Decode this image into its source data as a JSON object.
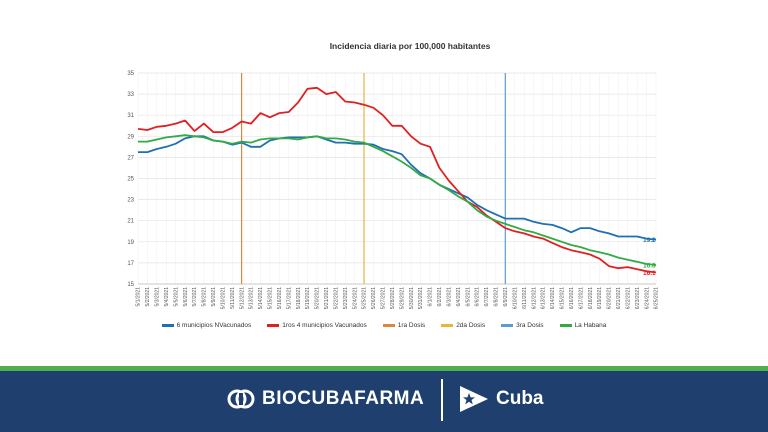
{
  "chart_data": {
    "type": "line",
    "title": "Incidencia diaria por 100,000 habitantes",
    "xlabel": "",
    "ylabel": "",
    "ylim": [
      15,
      35
    ],
    "yticks": [
      15,
      17,
      19,
      21,
      23,
      25,
      27,
      29,
      31,
      33,
      35
    ],
    "categories": [
      "5/1/2021",
      "5/2/2021",
      "5/3/2021",
      "5/4/2021",
      "5/5/2021",
      "5/6/2021",
      "5/7/2021",
      "5/8/2021",
      "5/9/2021",
      "5/10/2021",
      "5/11/2021",
      "5/12/2021",
      "5/13/2021",
      "5/14/2021",
      "5/15/2021",
      "5/16/2021",
      "5/17/2021",
      "5/18/2021",
      "5/19/2021",
      "5/20/2021",
      "5/21/2021",
      "5/22/2021",
      "5/23/2021",
      "5/24/2021",
      "5/25/2021",
      "5/26/2021",
      "5/27/2021",
      "5/28/2021",
      "5/29/2021",
      "5/30/2021",
      "5/31/2021",
      "6/1/2021",
      "6/2/2021",
      "6/3/2021",
      "6/4/2021",
      "6/5/2021",
      "6/6/2021",
      "6/7/2021",
      "6/8/2021",
      "6/9/2021",
      "6/10/2021",
      "6/11/2021",
      "6/12/2021",
      "6/13/2021",
      "6/14/2021",
      "6/15/2021",
      "6/16/2021",
      "6/17/2021",
      "6/18/2021",
      "6/19/2021",
      "6/20/2021",
      "6/21/2021",
      "6/22/2021",
      "6/23/2021",
      "6/24/2021",
      "6/25/2021"
    ],
    "series": [
      {
        "name": "6 municipios NVacunados",
        "color": "#1f6fb4",
        "values": [
          27.5,
          27.5,
          27.8,
          28.0,
          28.3,
          28.8,
          29.0,
          29.0,
          28.6,
          28.5,
          28.2,
          28.4,
          28.0,
          28.0,
          28.6,
          28.8,
          28.9,
          28.9,
          28.9,
          29.0,
          28.7,
          28.4,
          28.4,
          28.3,
          28.3,
          28.2,
          27.8,
          27.6,
          27.3,
          26.3,
          25.5,
          25.0,
          24.4,
          24.0,
          23.6,
          23.2,
          22.5,
          22.0,
          21.6,
          21.2,
          21.2,
          21.2,
          20.9,
          20.7,
          20.6,
          20.3,
          19.9,
          20.3,
          20.3,
          20.0,
          19.8,
          19.5,
          19.5,
          19.5,
          19.3,
          19.2
        ]
      },
      {
        "name": "1ros 4 municipios Vacunados",
        "color": "#e02020",
        "values": [
          29.7,
          29.6,
          29.9,
          30.0,
          30.2,
          30.5,
          29.5,
          30.2,
          29.4,
          29.4,
          29.8,
          30.4,
          30.2,
          31.2,
          30.8,
          31.2,
          31.3,
          32.2,
          33.5,
          33.6,
          33.0,
          33.2,
          32.3,
          32.2,
          32.0,
          31.7,
          31.0,
          30.0,
          30.0,
          29.0,
          28.3,
          28.0,
          26.0,
          24.8,
          23.8,
          22.8,
          22.3,
          21.5,
          20.9,
          20.3,
          20.0,
          19.8,
          19.5,
          19.3,
          18.9,
          18.5,
          18.2,
          18.0,
          17.8,
          17.4,
          16.7,
          16.5,
          16.6,
          16.4,
          16.2,
          16.1
        ]
      },
      {
        "name": "La Habana",
        "color": "#33aa44",
        "values": [
          28.5,
          28.5,
          28.7,
          28.9,
          29.0,
          29.1,
          29.0,
          28.9,
          28.6,
          28.5,
          28.3,
          28.5,
          28.4,
          28.7,
          28.8,
          28.8,
          28.8,
          28.7,
          28.9,
          29.0,
          28.8,
          28.8,
          28.7,
          28.5,
          28.4,
          28.0,
          27.6,
          27.1,
          26.6,
          26.0,
          25.3,
          25.0,
          24.4,
          23.9,
          23.3,
          22.8,
          22.0,
          21.4,
          21.0,
          20.7,
          20.4,
          20.1,
          19.9,
          19.6,
          19.3,
          19.0,
          18.7,
          18.5,
          18.2,
          18.0,
          17.8,
          17.5,
          17.3,
          17.1,
          16.9,
          16.8
        ]
      }
    ],
    "reference_lines": [
      {
        "name": "1ra Dosis",
        "color": "#d98a3c",
        "date": "5/12/2021"
      },
      {
        "name": "2da Dosis",
        "color": "#e8b43a",
        "date": "5/25/2021"
      },
      {
        "name": "3ra Dosis",
        "color": "#5b9bd5",
        "date": "6/9/2021"
      }
    ],
    "end_labels": [
      {
        "text": "19.2",
        "color": "#1f6fb4",
        "value": 19.2
      },
      {
        "text": "16.8",
        "color": "#33aa44",
        "value": 16.8
      },
      {
        "text": "16.1",
        "color": "#e02020",
        "value": 16.1
      }
    ],
    "legend": [
      "6 municipios NVacunados",
      "1ros 4 municipios Vacunados",
      "1ra Dosis",
      "2da Dosis",
      "3ra Dosis",
      "La Habana"
    ],
    "legend_position": "bottom",
    "grid": true
  },
  "legend_items": [
    {
      "label": "6 municipios NVacunados",
      "color": "#1f6fb4"
    },
    {
      "label": "1ros 4 municipios Vacunados",
      "color": "#e02020"
    },
    {
      "label": "1ra Dosis",
      "color": "#d98a3c"
    },
    {
      "label": "2da Dosis",
      "color": "#e8b43a"
    },
    {
      "label": "3ra Dosis",
      "color": "#5b9bd5"
    },
    {
      "label": "La Habana",
      "color": "#33aa44"
    }
  ],
  "footer": {
    "brand": "BIOCUBAFARMA",
    "country": "Cuba",
    "band_color": "#1f3f6e",
    "stripe_color": "#4caf50"
  }
}
